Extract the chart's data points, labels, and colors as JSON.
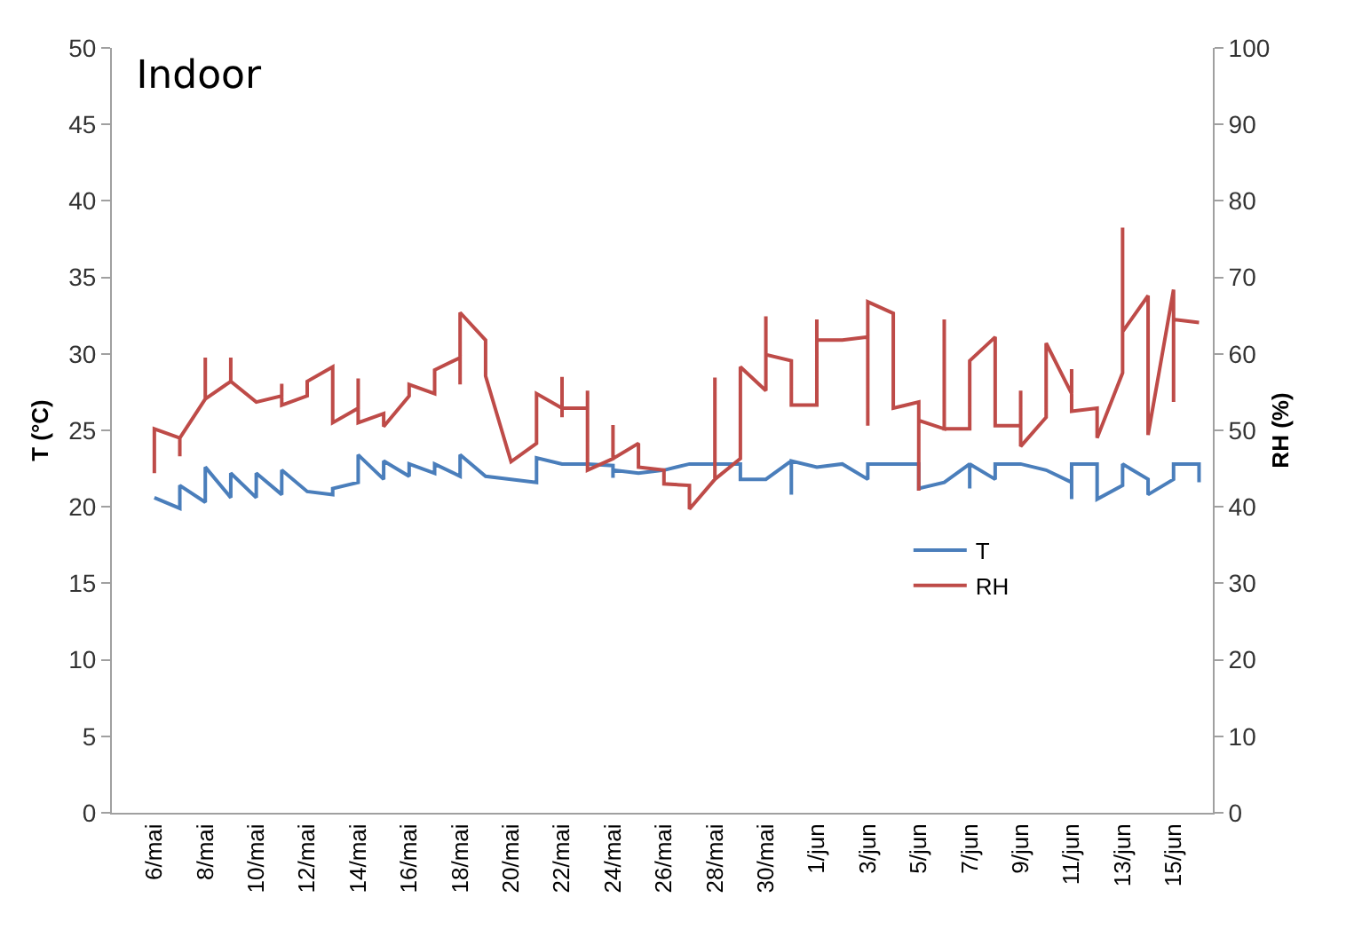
{
  "chart_data": {
    "type": "line",
    "title": "Indoor",
    "ylabel": "T (°C)",
    "y2label": "RH (%)",
    "xlim": [
      "--05-04T08:00",
      "--06-16T13:00"
    ],
    "xticks": [
      {
        "value": "--05-06",
        "label": "6/mai"
      },
      {
        "value": "--05-08",
        "label": "8/mai"
      },
      {
        "value": "--05-10",
        "label": "10/mai"
      },
      {
        "value": "--05-12",
        "label": "12/mai"
      },
      {
        "value": "--05-14",
        "label": "14/mai"
      },
      {
        "value": "--05-16",
        "label": "16/mai"
      },
      {
        "value": "--05-18",
        "label": "18/mai"
      },
      {
        "value": "--05-20",
        "label": "20/mai"
      },
      {
        "value": "--05-22",
        "label": "22/mai"
      },
      {
        "value": "--05-24",
        "label": "24/mai"
      },
      {
        "value": "--05-26",
        "label": "26/mai"
      },
      {
        "value": "--05-28",
        "label": "28/mai"
      },
      {
        "value": "--05-30",
        "label": "30/mai"
      },
      {
        "value": "--06-01",
        "label": "1/jun"
      },
      {
        "value": "--06-03",
        "label": "3/jun"
      },
      {
        "value": "--06-05",
        "label": "5/jun"
      },
      {
        "value": "--06-07",
        "label": "7/jun"
      },
      {
        "value": "--06-09",
        "label": "9/jun"
      },
      {
        "value": "--06-11",
        "label": "11/jun"
      },
      {
        "value": "--06-13",
        "label": "13/jun"
      },
      {
        "value": "--06-15",
        "label": "15/jun"
      }
    ],
    "ylim": [
      0,
      50
    ],
    "yticks": [
      0,
      5,
      10,
      15,
      20,
      25,
      30,
      35,
      40,
      45,
      50
    ],
    "y2lim": [
      0,
      100
    ],
    "y2ticks": [
      0,
      10,
      20,
      30,
      40,
      50,
      60,
      70,
      80,
      90,
      100
    ],
    "grid": false,
    "legend": "right",
    "marker": "none",
    "line_style": "solid",
    "series": [
      {
        "name": "T",
        "color": "#4a7ebb",
        "x": [
          "--05-06",
          "--05-07",
          "--05-07",
          "--05-08",
          "--05-08",
          "--05-09",
          "--05-09",
          "--05-10",
          "--05-10",
          "--05-11",
          "--05-11",
          "--05-12",
          "--05-13",
          "--05-13",
          "--05-14",
          "--05-14",
          "--05-15",
          "--05-15",
          "--05-16",
          "--05-16",
          "--05-17",
          "--05-17",
          "--05-18",
          "--05-18",
          "--05-19",
          "--05-20",
          "--05-21",
          "--05-21",
          "--05-22",
          "--05-23",
          "--05-24",
          "--05-24",
          "--05-24",
          "--05-25",
          "--05-26",
          "--05-27",
          "--05-28",
          "--05-29",
          "--05-29",
          "--05-30",
          "--05-31",
          "--05-31",
          "--05-31",
          "--06-01",
          "--06-02",
          "--06-03",
          "--06-03",
          "--06-04",
          "--06-05",
          "--06-05",
          "--06-06",
          "--06-07",
          "--06-07",
          "--06-07",
          "--06-08",
          "--06-08",
          "--06-09",
          "--06-10",
          "--06-11",
          "--06-11",
          "--06-11",
          "--06-12",
          "--06-12",
          "--06-13",
          "--06-13",
          "--06-14",
          "--06-14",
          "--06-15",
          "--06-15",
          "--06-16",
          "--06-16"
        ],
        "values": [
          20.6,
          19.9,
          21.4,
          20.3,
          22.6,
          20.6,
          22.2,
          20.6,
          22.2,
          20.8,
          22.4,
          21.0,
          20.8,
          21.2,
          21.6,
          23.4,
          21.8,
          23.0,
          22.0,
          22.8,
          22.2,
          22.8,
          22.0,
          23.4,
          22.0,
          21.8,
          21.6,
          23.2,
          22.8,
          22.8,
          22.7,
          21.9,
          22.4,
          22.2,
          22.4,
          22.8,
          22.8,
          22.8,
          21.8,
          21.8,
          23.0,
          20.8,
          23.0,
          22.6,
          22.8,
          21.8,
          22.8,
          22.8,
          22.8,
          21.2,
          21.6,
          22.8,
          21.2,
          22.8,
          21.8,
          22.8,
          22.8,
          22.4,
          21.6,
          20.5,
          22.8,
          22.8,
          20.5,
          21.4,
          22.8,
          21.8,
          20.8,
          21.8,
          22.8,
          22.8,
          21.6
        ]
      },
      {
        "name": "RH",
        "color": "#be4b48",
        "axis": "y2",
        "x": [
          "--05-06",
          "--05-06",
          "--05-07",
          "--05-07",
          "--05-07",
          "--05-08",
          "--05-08",
          "--05-08",
          "--05-09",
          "--05-09",
          "--05-09",
          "--05-10",
          "--05-11",
          "--05-11",
          "--05-11",
          "--05-12",
          "--05-12",
          "--05-13",
          "--05-13",
          "--05-14",
          "--05-14",
          "--05-14",
          "--05-15",
          "--05-15",
          "--05-16",
          "--05-16",
          "--05-17",
          "--05-17",
          "--05-18",
          "--05-18",
          "--05-18",
          "--05-19",
          "--05-19",
          "--05-20",
          "--05-21",
          "--05-21",
          "--05-22",
          "--05-22",
          "--05-22",
          "--05-22",
          "--05-23",
          "--05-23",
          "--05-23",
          "--05-24",
          "--05-24",
          "--05-24",
          "--05-25",
          "--05-25",
          "--05-26",
          "--05-26",
          "--05-27",
          "--05-27",
          "--05-28",
          "--05-28",
          "--05-28",
          "--05-29",
          "--05-29",
          "--05-30",
          "--05-30",
          "--05-30",
          "--05-31",
          "--05-31",
          "--06-01",
          "--06-01",
          "--06-01",
          "--06-02",
          "--06-03",
          "--06-03",
          "--06-03",
          "--06-04",
          "--06-04",
          "--06-05",
          "--06-05",
          "--06-05",
          "--06-06",
          "--06-06",
          "--06-06",
          "--06-07",
          "--06-07",
          "--06-08",
          "--06-08",
          "--06-09",
          "--06-09",
          "--06-09",
          "--06-10",
          "--06-10",
          "--06-11",
          "--06-11",
          "--06-11",
          "--06-12",
          "--06-12",
          "--06-13",
          "--06-13",
          "--06-13",
          "--06-14",
          "--06-14",
          "--06-15",
          "--06-15",
          "--06-15",
          "--06-16"
        ],
        "values": [
          44.4,
          50.2,
          49.0,
          46.6,
          49.0,
          54.1,
          59.5,
          54.1,
          56.4,
          59.5,
          56.4,
          53.7,
          54.5,
          56.1,
          53.3,
          54.5,
          56.4,
          58.3,
          51.0,
          52.9,
          56.8,
          51.0,
          52.2,
          50.5,
          54.5,
          56.0,
          54.8,
          57.9,
          59.5,
          56.0,
          65.4,
          61.8,
          57.1,
          45.9,
          48.3,
          54.8,
          52.9,
          57.0,
          51.7,
          52.9,
          52.9,
          55.2,
          44.8,
          46.3,
          50.7,
          46.3,
          48.3,
          45.2,
          44.8,
          43.0,
          42.8,
          39.7,
          43.6,
          56.9,
          43.6,
          46.3,
          58.3,
          55.2,
          64.9,
          59.9,
          59.1,
          53.3,
          53.3,
          64.5,
          61.8,
          61.8,
          62.2,
          50.6,
          66.8,
          65.3,
          52.9,
          53.7,
          42.1,
          51.3,
          50.2,
          64.5,
          50.2,
          50.2,
          59.1,
          62.2,
          50.6,
          50.6,
          55.2,
          47.9,
          51.7,
          61.4,
          54.8,
          58.0,
          52.5,
          52.9,
          49.0,
          57.5,
          76.5,
          62.9,
          67.6,
          49.4,
          68.4,
          53.7,
          64.5,
          64.1
        ]
      }
    ]
  }
}
